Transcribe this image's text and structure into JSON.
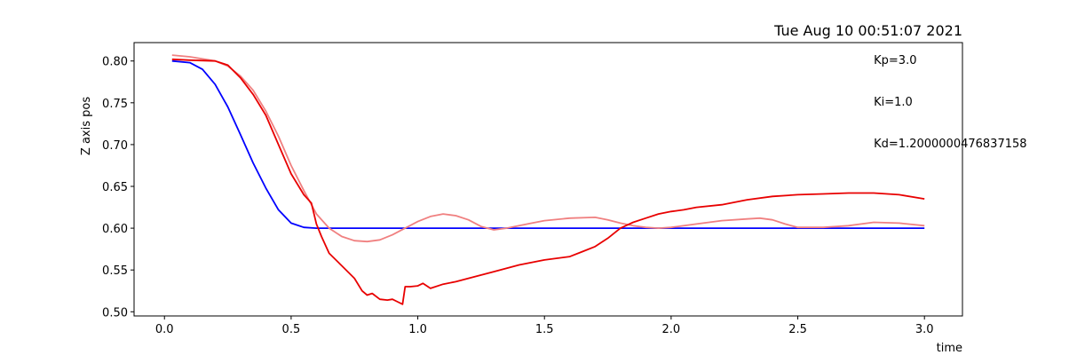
{
  "chart_data": {
    "type": "line",
    "title": "Tue Aug 10 00:51:07 2021",
    "xlabel": "time",
    "ylabel": "Z axis pos",
    "xlim": [
      -0.12,
      3.15
    ],
    "ylim": [
      0.495,
      0.822
    ],
    "xticks": [
      0.0,
      0.5,
      1.0,
      1.5,
      2.0,
      2.5,
      3.0
    ],
    "xtick_labels": [
      "0.0",
      "0.5",
      "1.0",
      "1.5",
      "2.0",
      "2.5",
      "3.0"
    ],
    "yticks": [
      0.5,
      0.55,
      0.6,
      0.65,
      0.7,
      0.75,
      0.8
    ],
    "ytick_labels": [
      "0.50",
      "0.55",
      "0.60",
      "0.65",
      "0.70",
      "0.75",
      "0.80"
    ],
    "grid": false,
    "annotations": [
      {
        "text": "Kp=3.0",
        "x": 2.8,
        "y": 0.801
      },
      {
        "text": "Ki=1.0",
        "x": 2.8,
        "y": 0.751
      },
      {
        "text": "Kd=1.2000000476837158",
        "x": 2.8,
        "y": 0.701
      }
    ],
    "series": [
      {
        "color": "#0000ff",
        "x": [
          0.03,
          0.1,
          0.15,
          0.2,
          0.25,
          0.3,
          0.35,
          0.4,
          0.45,
          0.5,
          0.55,
          0.6,
          0.7,
          0.8,
          1.0,
          1.5,
          2.0,
          2.5,
          3.0
        ],
        "y": [
          0.8,
          0.798,
          0.79,
          0.772,
          0.745,
          0.712,
          0.678,
          0.648,
          0.622,
          0.606,
          0.601,
          0.6,
          0.6,
          0.6,
          0.6,
          0.6,
          0.6,
          0.6,
          0.6
        ]
      },
      {
        "color": "#f08080",
        "x": [
          0.03,
          0.1,
          0.2,
          0.25,
          0.3,
          0.35,
          0.4,
          0.45,
          0.5,
          0.55,
          0.6,
          0.65,
          0.7,
          0.75,
          0.8,
          0.85,
          0.9,
          0.95,
          1.0,
          1.05,
          1.1,
          1.15,
          1.2,
          1.25,
          1.3,
          1.35,
          1.4,
          1.45,
          1.5,
          1.6,
          1.7,
          1.75,
          1.8,
          1.85,
          1.9,
          1.95,
          2.0,
          2.1,
          2.2,
          2.3,
          2.35,
          2.4,
          2.45,
          2.5,
          2.6,
          2.7,
          2.8,
          2.9,
          3.0
        ],
        "y": [
          0.807,
          0.805,
          0.8,
          0.794,
          0.782,
          0.765,
          0.74,
          0.71,
          0.675,
          0.645,
          0.617,
          0.6,
          0.59,
          0.585,
          0.584,
          0.586,
          0.592,
          0.6,
          0.608,
          0.614,
          0.617,
          0.615,
          0.61,
          0.602,
          0.598,
          0.6,
          0.603,
          0.606,
          0.609,
          0.612,
          0.613,
          0.61,
          0.606,
          0.603,
          0.601,
          0.6,
          0.601,
          0.605,
          0.609,
          0.611,
          0.612,
          0.61,
          0.605,
          0.601,
          0.601,
          0.603,
          0.607,
          0.606,
          0.603
        ]
      },
      {
        "color": "#e80000",
        "x": [
          0.03,
          0.1,
          0.2,
          0.25,
          0.3,
          0.35,
          0.4,
          0.45,
          0.5,
          0.55,
          0.58,
          0.6,
          0.62,
          0.65,
          0.7,
          0.75,
          0.78,
          0.8,
          0.82,
          0.85,
          0.88,
          0.9,
          0.92,
          0.94,
          0.95,
          0.97,
          1.0,
          1.02,
          1.05,
          1.1,
          1.15,
          1.2,
          1.3,
          1.4,
          1.5,
          1.6,
          1.65,
          1.7,
          1.75,
          1.8,
          1.85,
          1.9,
          1.95,
          2.0,
          2.05,
          2.1,
          2.2,
          2.3,
          2.4,
          2.5,
          2.6,
          2.7,
          2.8,
          2.9,
          3.0
        ],
        "y": [
          0.802,
          0.801,
          0.8,
          0.795,
          0.78,
          0.76,
          0.735,
          0.7,
          0.665,
          0.64,
          0.63,
          0.605,
          0.59,
          0.57,
          0.555,
          0.54,
          0.525,
          0.52,
          0.522,
          0.515,
          0.514,
          0.515,
          0.512,
          0.509,
          0.53,
          0.53,
          0.531,
          0.534,
          0.528,
          0.533,
          0.536,
          0.54,
          0.548,
          0.556,
          0.562,
          0.566,
          0.572,
          0.578,
          0.588,
          0.6,
          0.607,
          0.612,
          0.617,
          0.62,
          0.622,
          0.625,
          0.628,
          0.634,
          0.638,
          0.64,
          0.641,
          0.642,
          0.642,
          0.64,
          0.635
        ]
      }
    ]
  }
}
